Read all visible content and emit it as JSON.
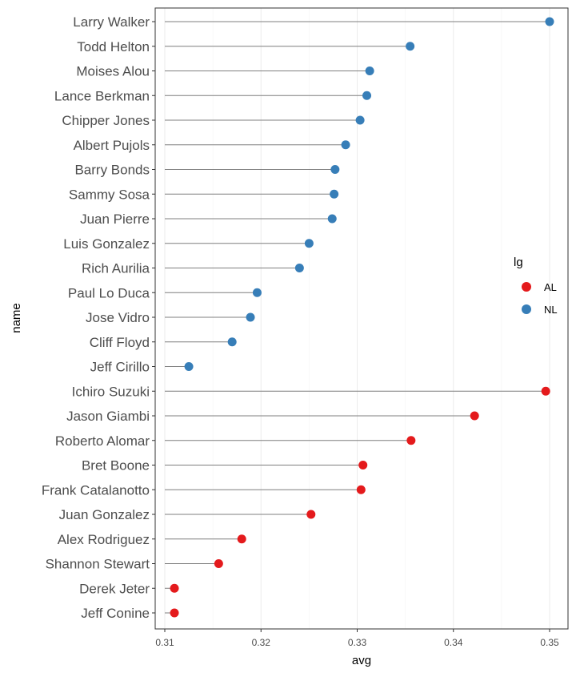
{
  "chart_data": {
    "type": "scatter",
    "subtype": "lollipop",
    "xlabel": "avg",
    "ylabel": "name",
    "xlim": [
      0.31,
      0.35
    ],
    "x_ticks": [
      0.31,
      0.32,
      0.33,
      0.34,
      0.35
    ],
    "x_tick_labels": [
      "0.31",
      "0.32",
      "0.33",
      "0.34",
      "0.35"
    ],
    "grid": true,
    "legend": {
      "title": "lg",
      "position": "right",
      "entries": [
        {
          "label": "AL",
          "color": "#e41a1c"
        },
        {
          "label": "NL",
          "color": "#377eb8"
        }
      ]
    },
    "segment_start": 0.31,
    "points": [
      {
        "name": "Larry Walker",
        "avg": 0.35,
        "lg": "NL"
      },
      {
        "name": "Todd Helton",
        "avg": 0.3355,
        "lg": "NL"
      },
      {
        "name": "Moises Alou",
        "avg": 0.3313,
        "lg": "NL"
      },
      {
        "name": "Lance Berkman",
        "avg": 0.331,
        "lg": "NL"
      },
      {
        "name": "Chipper Jones",
        "avg": 0.3303,
        "lg": "NL"
      },
      {
        "name": "Albert Pujols",
        "avg": 0.3288,
        "lg": "NL"
      },
      {
        "name": "Barry Bonds",
        "avg": 0.3277,
        "lg": "NL"
      },
      {
        "name": "Sammy Sosa",
        "avg": 0.3276,
        "lg": "NL"
      },
      {
        "name": "Juan Pierre",
        "avg": 0.3274,
        "lg": "NL"
      },
      {
        "name": "Luis Gonzalez",
        "avg": 0.325,
        "lg": "NL"
      },
      {
        "name": "Rich Aurilia",
        "avg": 0.324,
        "lg": "NL"
      },
      {
        "name": "Paul Lo Duca",
        "avg": 0.3196,
        "lg": "NL"
      },
      {
        "name": "Jose Vidro",
        "avg": 0.3189,
        "lg": "NL"
      },
      {
        "name": "Cliff Floyd",
        "avg": 0.317,
        "lg": "NL"
      },
      {
        "name": "Jeff Cirillo",
        "avg": 0.3125,
        "lg": "NL"
      },
      {
        "name": "Ichiro Suzuki",
        "avg": 0.3496,
        "lg": "AL"
      },
      {
        "name": "Jason Giambi",
        "avg": 0.3422,
        "lg": "AL"
      },
      {
        "name": "Roberto Alomar",
        "avg": 0.3356,
        "lg": "AL"
      },
      {
        "name": "Bret Boone",
        "avg": 0.3306,
        "lg": "AL"
      },
      {
        "name": "Frank Catalanotto",
        "avg": 0.3304,
        "lg": "AL"
      },
      {
        "name": "Juan Gonzalez",
        "avg": 0.3252,
        "lg": "AL"
      },
      {
        "name": "Alex Rodriguez",
        "avg": 0.318,
        "lg": "AL"
      },
      {
        "name": "Shannon Stewart",
        "avg": 0.3156,
        "lg": "AL"
      },
      {
        "name": "Derek Jeter",
        "avg": 0.311,
        "lg": "AL"
      },
      {
        "name": "Jeff Conine",
        "avg": 0.311,
        "lg": "AL"
      }
    ]
  }
}
